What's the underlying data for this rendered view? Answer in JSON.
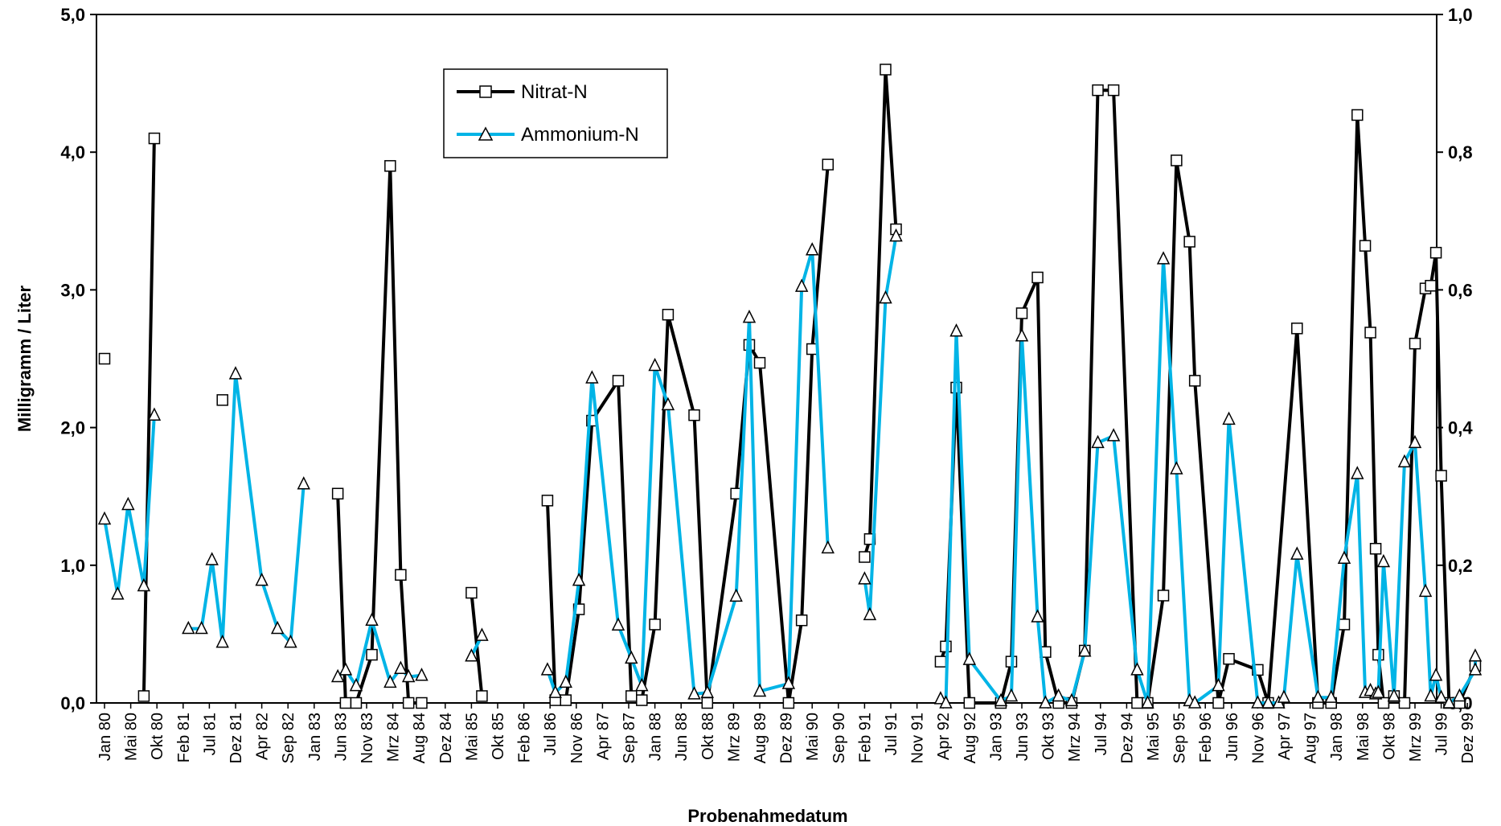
{
  "chart_data": {
    "type": "line",
    "xlabel": "Probenahmedatum",
    "ylabel": "Milligramm / Liter",
    "ylim": [
      0,
      5
    ],
    "ylim_right": [
      0,
      1
    ],
    "yticks_left": [
      "0,0",
      "1,0",
      "2,0",
      "3,0",
      "4,0",
      "5,0"
    ],
    "yticks_right": [
      "0,0",
      "0,2",
      "0,4",
      "0,6",
      "0,8",
      "1,0"
    ],
    "categories": [
      "Jan 80",
      "Mai 80",
      "Okt 80",
      "Feb 81",
      "Jul 81",
      "Dez 81",
      "Apr 82",
      "Sep 82",
      "Jan 83",
      "Jun 83",
      "Nov 83",
      "Mrz 84",
      "Aug 84",
      "Dez 84",
      "Mai 85",
      "Okt 85",
      "Feb 86",
      "Jul 86",
      "Nov 86",
      "Apr 87",
      "Sep 87",
      "Jan 88",
      "Jun 88",
      "Okt 88",
      "Mrz 89",
      "Aug 89",
      "Dez 89",
      "Mai 90",
      "Sep 90",
      "Feb 91",
      "Jul 91",
      "Nov 91",
      "Apr 92",
      "Aug 92",
      "Jan 93",
      "Jun 93",
      "Okt 93",
      "Mrz 94",
      "Jul 94",
      "Dez 94",
      "Mai 95",
      "Sep 95",
      "Feb 96",
      "Jun 96",
      "Nov 96",
      "Apr 97",
      "Aug 97",
      "Jan 98",
      "Mai 98",
      "Okt 98",
      "Mrz 99",
      "Jul 99",
      "Dez 99"
    ],
    "legend_position": "top-center",
    "grid": false,
    "series": [
      {
        "name": "Nitrat-N",
        "color": "#000000",
        "marker": "square",
        "axis": "left",
        "points": [
          [
            0.0,
            2.5
          ],
          [
            1.5,
            0.05
          ],
          [
            1.9,
            4.1
          ],
          [
            4.5,
            2.2
          ],
          [
            8.9,
            1.52
          ],
          [
            9.2,
            0.0
          ],
          [
            9.6,
            0.0
          ],
          [
            10.2,
            0.35
          ],
          [
            10.9,
            3.9
          ],
          [
            11.3,
            0.93
          ],
          [
            11.6,
            0.0
          ],
          [
            12.1,
            0.0
          ],
          [
            14.0,
            0.8
          ],
          [
            14.4,
            0.05
          ],
          [
            16.9,
            1.47
          ],
          [
            17.2,
            0.02
          ],
          [
            17.6,
            0.02
          ],
          [
            18.1,
            0.68
          ],
          [
            18.6,
            2.05
          ],
          [
            19.6,
            2.34
          ],
          [
            20.1,
            0.05
          ],
          [
            20.5,
            0.02
          ],
          [
            21.0,
            0.57
          ],
          [
            21.5,
            2.82
          ],
          [
            22.5,
            2.09
          ],
          [
            23.0,
            0.0
          ],
          [
            24.1,
            1.52
          ],
          [
            24.6,
            2.6
          ],
          [
            25.0,
            2.47
          ],
          [
            26.1,
            0.0
          ],
          [
            26.6,
            0.6
          ],
          [
            27.0,
            2.57
          ],
          [
            27.6,
            3.91
          ],
          [
            29.0,
            1.06
          ],
          [
            29.2,
            1.19
          ],
          [
            29.8,
            4.6
          ],
          [
            30.2,
            3.44
          ],
          [
            31.9,
            0.3
          ],
          [
            32.1,
            0.41
          ],
          [
            32.5,
            2.29
          ],
          [
            33.0,
            0.0
          ],
          [
            34.2,
            0.0
          ],
          [
            34.6,
            0.3
          ],
          [
            35.0,
            2.83
          ],
          [
            35.6,
            3.09
          ],
          [
            35.9,
            0.37
          ],
          [
            36.4,
            0.0
          ],
          [
            36.9,
            0.0
          ],
          [
            37.4,
            0.38
          ],
          [
            37.9,
            4.45
          ],
          [
            38.5,
            4.45
          ],
          [
            39.4,
            0.0
          ],
          [
            39.8,
            0.0
          ],
          [
            40.4,
            0.78
          ],
          [
            40.9,
            3.94
          ],
          [
            41.4,
            3.35
          ],
          [
            41.6,
            2.34
          ],
          [
            42.5,
            0.0
          ],
          [
            42.9,
            0.32
          ],
          [
            44.0,
            0.24
          ],
          [
            44.4,
            0.0
          ],
          [
            45.5,
            2.72
          ],
          [
            46.3,
            0.0
          ],
          [
            46.8,
            0.0
          ],
          [
            47.3,
            0.57
          ],
          [
            47.8,
            4.27
          ],
          [
            48.1,
            3.32
          ],
          [
            48.3,
            2.69
          ],
          [
            48.5,
            1.12
          ],
          [
            48.6,
            0.35
          ],
          [
            48.8,
            0.0
          ],
          [
            49.2,
            0.05
          ],
          [
            49.6,
            0.0
          ],
          [
            50.0,
            2.61
          ],
          [
            50.4,
            3.01
          ],
          [
            50.6,
            3.03
          ],
          [
            50.8,
            3.27
          ],
          [
            51.0,
            1.65
          ],
          [
            51.3,
            0.0
          ],
          [
            51.7,
            0.0
          ],
          [
            52.3,
            0.27
          ]
        ]
      },
      {
        "name": "Ammonium-N",
        "color": "#00b4e6",
        "marker": "triangle",
        "axis": "right",
        "points": [
          [
            0.0,
            0.267
          ],
          [
            0.5,
            0.158
          ],
          [
            0.9,
            0.288
          ],
          [
            1.5,
            0.17
          ],
          [
            1.9,
            0.418
          ],
          [
            3.2,
            0.108
          ],
          [
            3.7,
            0.108
          ],
          [
            4.1,
            0.208
          ],
          [
            4.5,
            0.088
          ],
          [
            5.0,
            0.478
          ],
          [
            6.0,
            0.178
          ],
          [
            6.6,
            0.108
          ],
          [
            7.1,
            0.088
          ],
          [
            7.6,
            0.318
          ],
          [
            8.9,
            0.038
          ],
          [
            9.2,
            0.048
          ],
          [
            9.6,
            0.025
          ],
          [
            10.2,
            0.12
          ],
          [
            10.9,
            0.03
          ],
          [
            11.3,
            0.05
          ],
          [
            11.6,
            0.038
          ],
          [
            12.1,
            0.04
          ],
          [
            14.0,
            0.068
          ],
          [
            14.4,
            0.098
          ],
          [
            16.9,
            0.048
          ],
          [
            17.2,
            0.015
          ],
          [
            17.6,
            0.03
          ],
          [
            18.1,
            0.178
          ],
          [
            18.6,
            0.472
          ],
          [
            19.6,
            0.113
          ],
          [
            20.1,
            0.065
          ],
          [
            20.5,
            0.025
          ],
          [
            21.0,
            0.49
          ],
          [
            21.5,
            0.433
          ],
          [
            22.5,
            0.013
          ],
          [
            23.0,
            0.015
          ],
          [
            24.1,
            0.155
          ],
          [
            24.6,
            0.56
          ],
          [
            25.0,
            0.017
          ],
          [
            26.1,
            0.028
          ],
          [
            26.6,
            0.605
          ],
          [
            27.0,
            0.658
          ],
          [
            27.6,
            0.225
          ],
          [
            29.0,
            0.18
          ],
          [
            29.2,
            0.128
          ],
          [
            29.8,
            0.588
          ],
          [
            30.2,
            0.678
          ],
          [
            31.9,
            0.006
          ],
          [
            32.1,
            0.0
          ],
          [
            32.5,
            0.54
          ],
          [
            33.0,
            0.063
          ],
          [
            34.2,
            0.003
          ],
          [
            34.6,
            0.01
          ],
          [
            35.0,
            0.533
          ],
          [
            35.6,
            0.125
          ],
          [
            35.9,
            0.0
          ],
          [
            36.4,
            0.01
          ],
          [
            36.9,
            0.003
          ],
          [
            37.4,
            0.075
          ],
          [
            37.9,
            0.378
          ],
          [
            38.5,
            0.388
          ],
          [
            39.4,
            0.048
          ],
          [
            39.8,
            0.0
          ],
          [
            40.4,
            0.645
          ],
          [
            40.9,
            0.34
          ],
          [
            41.4,
            0.003
          ],
          [
            41.6,
            0.0
          ],
          [
            42.5,
            0.025
          ],
          [
            42.9,
            0.412
          ],
          [
            44.0,
            0.0
          ],
          [
            44.4,
            0.0
          ],
          [
            44.8,
            0.0
          ],
          [
            45.0,
            0.008
          ],
          [
            45.5,
            0.216
          ],
          [
            46.3,
            0.008
          ],
          [
            46.8,
            0.008
          ],
          [
            47.3,
            0.21
          ],
          [
            47.8,
            0.333
          ],
          [
            48.1,
            0.015
          ],
          [
            48.3,
            0.018
          ],
          [
            48.5,
            0.013
          ],
          [
            48.6,
            0.015
          ],
          [
            48.8,
            0.205
          ],
          [
            49.2,
            0.01
          ],
          [
            49.6,
            0.35
          ],
          [
            50.0,
            0.378
          ],
          [
            50.4,
            0.162
          ],
          [
            50.6,
            0.01
          ],
          [
            50.8,
            0.04
          ],
          [
            51.0,
            0.008
          ],
          [
            51.3,
            0.0
          ],
          [
            51.7,
            0.01
          ],
          [
            52.3,
            0.048
          ],
          [
            52.3,
            0.068
          ]
        ]
      }
    ]
  }
}
